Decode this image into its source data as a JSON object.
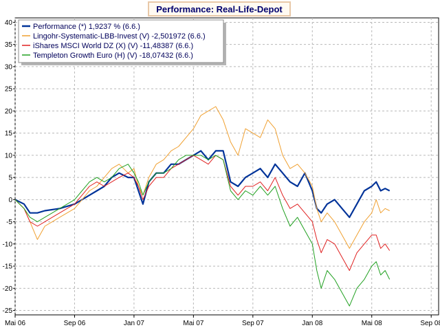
{
  "chart_data": {
    "type": "line",
    "title": "Performance: Real-Life-Depot",
    "xlabel": "",
    "ylabel": "",
    "ylim": [
      -26,
      41
    ],
    "xlim": [
      0,
      28.5
    ],
    "x_unit": "months since Mai 06",
    "y_ticks": [
      40,
      35,
      30,
      25,
      20,
      15,
      10,
      5,
      0,
      -5,
      -10,
      -15,
      -20,
      -25
    ],
    "x_ticks": [
      {
        "label": "Mai 06",
        "x": 0
      },
      {
        "label": "Sep 06",
        "x": 4
      },
      {
        "label": "Jan 07",
        "x": 8
      },
      {
        "label": "Mai 07",
        "x": 12
      },
      {
        "label": "Sep 07",
        "x": 16
      },
      {
        "label": "Jan 08",
        "x": 20
      },
      {
        "label": "Mai 08",
        "x": 24
      },
      {
        "label": "Sep 08",
        "x": 28
      }
    ],
    "grid": true,
    "legend_position": "top-left",
    "series": [
      {
        "name": "Performance (*) 1,9237 % (6.6.)",
        "color": "#003399",
        "points": [
          [
            0,
            0
          ],
          [
            0.6,
            -1
          ],
          [
            1,
            -3
          ],
          [
            1.5,
            -3
          ],
          [
            2,
            -2.5
          ],
          [
            3,
            -2
          ],
          [
            4,
            -1
          ],
          [
            4.5,
            0
          ],
          [
            5,
            1
          ],
          [
            5.5,
            2
          ],
          [
            6,
            3
          ],
          [
            6.5,
            5
          ],
          [
            7,
            6
          ],
          [
            7.6,
            5
          ],
          [
            8,
            5
          ],
          [
            8.3,
            2
          ],
          [
            8.6,
            -1
          ],
          [
            9,
            4
          ],
          [
            9.5,
            6
          ],
          [
            10,
            6
          ],
          [
            10.5,
            8
          ],
          [
            11,
            8
          ],
          [
            11.5,
            9
          ],
          [
            12,
            10
          ],
          [
            12.5,
            11
          ],
          [
            13,
            9
          ],
          [
            13.5,
            11
          ],
          [
            14,
            11
          ],
          [
            14.5,
            4
          ],
          [
            15,
            3
          ],
          [
            15.5,
            5
          ],
          [
            16,
            6
          ],
          [
            16.5,
            7
          ],
          [
            17,
            5
          ],
          [
            17.5,
            8
          ],
          [
            18,
            6
          ],
          [
            18.5,
            4
          ],
          [
            19,
            3
          ],
          [
            19.5,
            6
          ],
          [
            20,
            2
          ],
          [
            20.3,
            -2
          ],
          [
            20.6,
            -3
          ],
          [
            21,
            -1
          ],
          [
            21.5,
            0
          ],
          [
            22,
            -2
          ],
          [
            22.5,
            -4
          ],
          [
            23,
            -1
          ],
          [
            23.5,
            2
          ],
          [
            24,
            3
          ],
          [
            24.3,
            4
          ],
          [
            24.6,
            2
          ],
          [
            24.9,
            2.5
          ],
          [
            25.2,
            2
          ]
        ]
      },
      {
        "name": "Lingohr-Systematic-LBB-Invest (V) -2,501972 (6.6.)",
        "color": "#f0a030",
        "points": [
          [
            0,
            0
          ],
          [
            0.6,
            -2
          ],
          [
            1,
            -5
          ],
          [
            1.5,
            -9
          ],
          [
            2,
            -6
          ],
          [
            2.5,
            -5
          ],
          [
            3,
            -4
          ],
          [
            4,
            -2
          ],
          [
            4.5,
            0
          ],
          [
            5,
            2
          ],
          [
            5.5,
            3
          ],
          [
            6,
            5
          ],
          [
            6.5,
            7
          ],
          [
            7,
            8
          ],
          [
            7.6,
            6
          ],
          [
            8,
            7
          ],
          [
            8.3,
            3
          ],
          [
            8.6,
            1
          ],
          [
            9,
            5
          ],
          [
            9.5,
            8
          ],
          [
            10,
            9
          ],
          [
            10.5,
            11
          ],
          [
            11,
            12
          ],
          [
            11.5,
            14
          ],
          [
            12,
            16
          ],
          [
            12.5,
            19
          ],
          [
            13,
            20
          ],
          [
            13.5,
            21
          ],
          [
            14,
            18
          ],
          [
            14.5,
            13
          ],
          [
            15,
            10
          ],
          [
            15.5,
            16
          ],
          [
            16,
            15
          ],
          [
            16.5,
            14
          ],
          [
            17,
            18
          ],
          [
            17.5,
            16
          ],
          [
            18,
            10
          ],
          [
            18.5,
            7
          ],
          [
            19,
            8
          ],
          [
            19.5,
            6
          ],
          [
            20,
            3
          ],
          [
            20.3,
            -2
          ],
          [
            20.6,
            -5
          ],
          [
            21,
            -3
          ],
          [
            21.5,
            -5
          ],
          [
            22,
            -8
          ],
          [
            22.5,
            -11
          ],
          [
            23,
            -8
          ],
          [
            23.5,
            -5
          ],
          [
            24,
            -3
          ],
          [
            24.3,
            0
          ],
          [
            24.6,
            -3
          ],
          [
            24.9,
            -2
          ],
          [
            25.2,
            -2.5
          ]
        ]
      },
      {
        "name": "iShares MSCI World DZ (X) (V) -11,48387 (6.6.)",
        "color": "#e02020",
        "points": [
          [
            0,
            0
          ],
          [
            0.6,
            -2
          ],
          [
            1,
            -5
          ],
          [
            1.5,
            -6
          ],
          [
            2,
            -5
          ],
          [
            2.5,
            -4
          ],
          [
            3,
            -3
          ],
          [
            4,
            -1
          ],
          [
            4.5,
            1
          ],
          [
            5,
            3
          ],
          [
            5.5,
            4
          ],
          [
            6,
            3
          ],
          [
            6.5,
            4
          ],
          [
            7,
            5
          ],
          [
            7.6,
            6
          ],
          [
            8,
            5
          ],
          [
            8.3,
            3
          ],
          [
            8.6,
            0
          ],
          [
            9,
            3
          ],
          [
            9.5,
            5
          ],
          [
            10,
            5
          ],
          [
            10.5,
            7
          ],
          [
            11,
            8
          ],
          [
            11.5,
            9
          ],
          [
            12,
            10
          ],
          [
            12.5,
            9
          ],
          [
            13,
            8
          ],
          [
            13.5,
            10
          ],
          [
            14,
            9
          ],
          [
            14.5,
            3
          ],
          [
            15,
            1
          ],
          [
            15.5,
            3
          ],
          [
            16,
            3
          ],
          [
            16.5,
            4
          ],
          [
            17,
            2
          ],
          [
            17.5,
            5
          ],
          [
            18,
            1
          ],
          [
            18.5,
            -2
          ],
          [
            19,
            -1
          ],
          [
            19.5,
            -3
          ],
          [
            20,
            -5
          ],
          [
            20.3,
            -9
          ],
          [
            20.6,
            -12
          ],
          [
            21,
            -9
          ],
          [
            21.5,
            -10
          ],
          [
            22,
            -13
          ],
          [
            22.5,
            -16
          ],
          [
            23,
            -12
          ],
          [
            23.5,
            -10
          ],
          [
            24,
            -8
          ],
          [
            24.3,
            -8
          ],
          [
            24.6,
            -11
          ],
          [
            24.9,
            -10
          ],
          [
            25.2,
            -11.5
          ]
        ]
      },
      {
        "name": "Templeton Growth Euro (H) (V) -18,07432 (6.6.)",
        "color": "#20a020",
        "points": [
          [
            0,
            0
          ],
          [
            0.6,
            -2
          ],
          [
            1,
            -4
          ],
          [
            1.5,
            -5
          ],
          [
            2,
            -4
          ],
          [
            2.5,
            -3
          ],
          [
            3,
            -2
          ],
          [
            4,
            0
          ],
          [
            4.5,
            2
          ],
          [
            5,
            4
          ],
          [
            5.5,
            5
          ],
          [
            6,
            4
          ],
          [
            6.5,
            5
          ],
          [
            7,
            7
          ],
          [
            7.6,
            8
          ],
          [
            8,
            6
          ],
          [
            8.3,
            4
          ],
          [
            8.6,
            1
          ],
          [
            9,
            4
          ],
          [
            9.5,
            6
          ],
          [
            10,
            6
          ],
          [
            10.5,
            7
          ],
          [
            11,
            9
          ],
          [
            11.5,
            10
          ],
          [
            12,
            10
          ],
          [
            12.5,
            10
          ],
          [
            13,
            9
          ],
          [
            13.5,
            10
          ],
          [
            14,
            9
          ],
          [
            14.5,
            2
          ],
          [
            15,
            0
          ],
          [
            15.5,
            2
          ],
          [
            16,
            1
          ],
          [
            16.5,
            3
          ],
          [
            17,
            1
          ],
          [
            17.5,
            3
          ],
          [
            18,
            -2
          ],
          [
            18.5,
            -6
          ],
          [
            19,
            -4
          ],
          [
            19.5,
            -7
          ],
          [
            20,
            -10
          ],
          [
            20.3,
            -16
          ],
          [
            20.6,
            -20
          ],
          [
            21,
            -16
          ],
          [
            21.5,
            -18
          ],
          [
            22,
            -21
          ],
          [
            22.5,
            -24
          ],
          [
            23,
            -20
          ],
          [
            23.5,
            -18
          ],
          [
            24,
            -15
          ],
          [
            24.3,
            -14
          ],
          [
            24.6,
            -17
          ],
          [
            24.9,
            -16
          ],
          [
            25.2,
            -18
          ]
        ]
      }
    ]
  }
}
